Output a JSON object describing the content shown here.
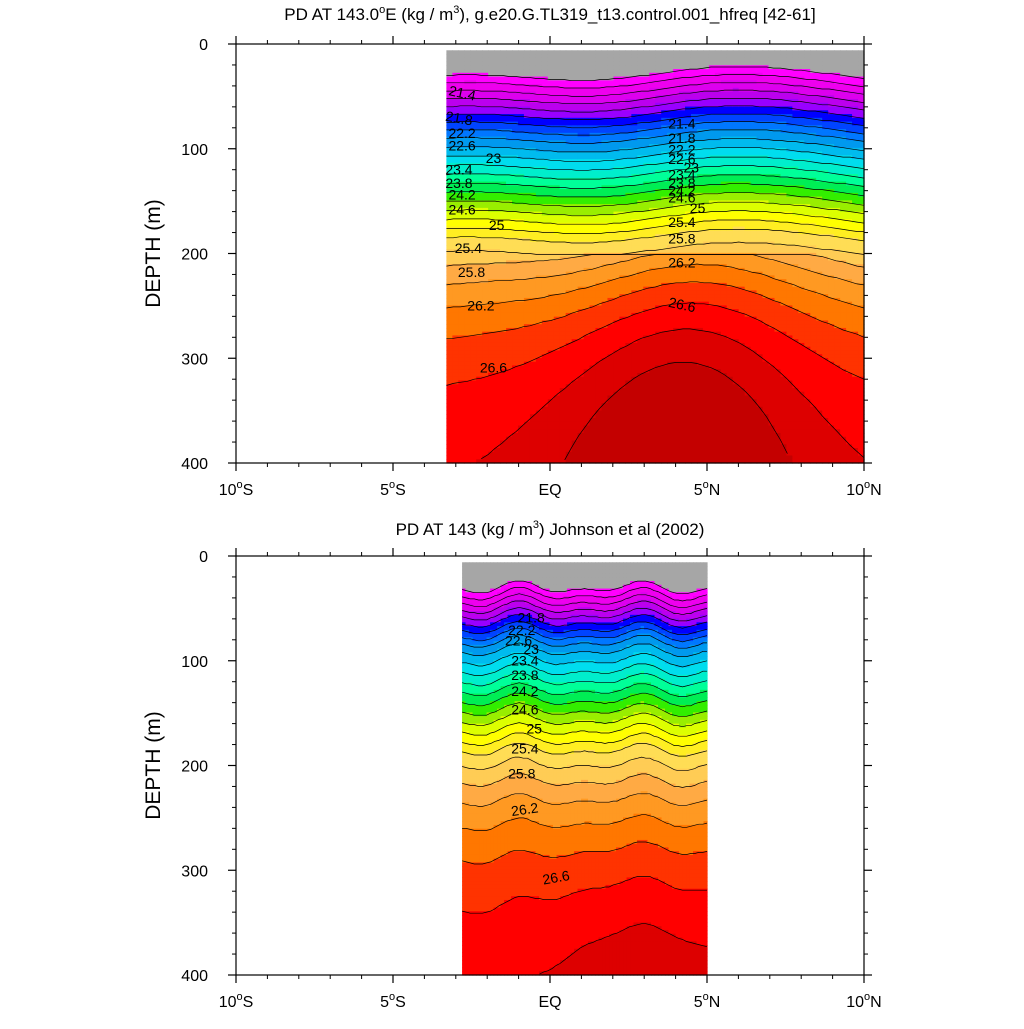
{
  "chart_data": [
    {
      "type": "contour",
      "title_prefix": "PD AT 143.0",
      "title_degree_mark": "o",
      "title_middle": "E (kg / m",
      "title_superscript": "3",
      "title_suffix": "), g.e20.G.TL319_t13.control.001_hfreq [42-61]",
      "ylabel": "DEPTH (m)",
      "xlim": [
        -10,
        10
      ],
      "ylim": [
        0,
        400
      ],
      "y_reversed": true,
      "data_xrange": [
        -3.3,
        10
      ],
      "x_ticks": [
        {
          "value": -10,
          "num": "10",
          "deg": "o",
          "dir": "S"
        },
        {
          "value": -5,
          "num": "5",
          "deg": "o",
          "dir": "S"
        },
        {
          "value": 0,
          "num": "EQ",
          "deg": "",
          "dir": ""
        },
        {
          "value": 5,
          "num": "5",
          "deg": "o",
          "dir": "N"
        },
        {
          "value": 10,
          "num": "10",
          "deg": "o",
          "dir": "N"
        }
      ],
      "y_ticks": [
        {
          "value": 0,
          "label": "0"
        },
        {
          "value": 100,
          "label": "100"
        },
        {
          "value": 200,
          "label": "200"
        },
        {
          "value": 300,
          "label": "300"
        },
        {
          "value": 400,
          "label": "400"
        }
      ],
      "levels": [
        21.4,
        21.6,
        21.8,
        22.0,
        22.2,
        22.4,
        22.6,
        22.8,
        23.0,
        23.2,
        23.4,
        23.6,
        23.8,
        24.0,
        24.2,
        24.4,
        24.6,
        24.8,
        25.0,
        25.2,
        25.4,
        25.6,
        25.8,
        26.0,
        26.2,
        26.4,
        26.6,
        26.8
      ],
      "fill_colors": [
        "#a6a6a6",
        "#ff00ff",
        "#ee00ee",
        "#dd00ee",
        "#bb00ee",
        "#9900ff",
        "#0000ff",
        "#0044ff",
        "#0077ff",
        "#0099ee",
        "#00bbee",
        "#00ddee",
        "#00eecc",
        "#00ff99",
        "#00ee55",
        "#33ee00",
        "#99ee00",
        "#ddff00",
        "#ffff00",
        "#ffee22",
        "#ffdd55",
        "#ffcc55",
        "#ffaa44",
        "#ff9922",
        "#ff7700",
        "#ff3300",
        "#ff0000",
        "#dd0000",
        "#c40000"
      ],
      "labels": [
        {
          "text": "21.4",
          "x": -2.8,
          "y": 48,
          "angle": 12
        },
        {
          "text": "21.8",
          "x": -2.9,
          "y": 72,
          "angle": 10
        },
        {
          "text": "22.2",
          "x": -2.8,
          "y": 86,
          "angle": 0
        },
        {
          "text": "22.6",
          "x": -2.8,
          "y": 98,
          "angle": 0
        },
        {
          "text": "23",
          "x": -1.8,
          "y": 110,
          "angle": 0
        },
        {
          "text": "23.4",
          "x": -2.9,
          "y": 121,
          "angle": 0
        },
        {
          "text": "23.8",
          "x": -2.9,
          "y": 134,
          "angle": 0
        },
        {
          "text": "24.2",
          "x": -2.8,
          "y": 145,
          "angle": 0
        },
        {
          "text": "24.6",
          "x": -2.8,
          "y": 159,
          "angle": 0
        },
        {
          "text": "25",
          "x": -1.7,
          "y": 174,
          "angle": 0
        },
        {
          "text": "25.4",
          "x": -2.6,
          "y": 196,
          "angle": 0
        },
        {
          "text": "25.8",
          "x": -2.5,
          "y": 219,
          "angle": 0
        },
        {
          "text": "26.2",
          "x": -2.2,
          "y": 251,
          "angle": 0
        },
        {
          "text": "26.6",
          "x": -1.8,
          "y": 310,
          "angle": 0
        },
        {
          "text": "21.4",
          "x": 4.2,
          "y": 77,
          "angle": 0
        },
        {
          "text": "21.8",
          "x": 4.2,
          "y": 91,
          "angle": 0
        },
        {
          "text": "22.2",
          "x": 4.2,
          "y": 102,
          "angle": 0
        },
        {
          "text": "22.6",
          "x": 4.2,
          "y": 111,
          "angle": 0
        },
        {
          "text": "23",
          "x": 4.5,
          "y": 119,
          "angle": 0
        },
        {
          "text": "23.4",
          "x": 4.2,
          "y": 126,
          "angle": 0
        },
        {
          "text": "23.8",
          "x": 4.2,
          "y": 134,
          "angle": 0
        },
        {
          "text": "24.2",
          "x": 4.2,
          "y": 141,
          "angle": 0
        },
        {
          "text": "24.6",
          "x": 4.2,
          "y": 148,
          "angle": 0
        },
        {
          "text": "25",
          "x": 4.7,
          "y": 158,
          "angle": 0
        },
        {
          "text": "25.4",
          "x": 4.2,
          "y": 171,
          "angle": 0
        },
        {
          "text": "25.8",
          "x": 4.2,
          "y": 187,
          "angle": 0
        },
        {
          "text": "26.2",
          "x": 4.2,
          "y": 210,
          "angle": 0
        },
        {
          "text": "26.6",
          "x": 4.2,
          "y": 250,
          "angle": 12
        }
      ]
    },
    {
      "type": "contour",
      "title_prefix": "PD AT 143 (kg / m",
      "title_degree_mark": "",
      "title_middle": "",
      "title_superscript": "3",
      "title_suffix": ") Johnson et al (2002)",
      "ylabel": "DEPTH (m)",
      "xlim": [
        -10,
        10
      ],
      "ylim": [
        0,
        400
      ],
      "y_reversed": true,
      "data_xrange": [
        -2.8,
        5
      ],
      "x_ticks": [
        {
          "value": -10,
          "num": "10",
          "deg": "o",
          "dir": "S"
        },
        {
          "value": -5,
          "num": "5",
          "deg": "o",
          "dir": "S"
        },
        {
          "value": 0,
          "num": "EQ",
          "deg": "",
          "dir": ""
        },
        {
          "value": 5,
          "num": "5",
          "deg": "o",
          "dir": "N"
        },
        {
          "value": 10,
          "num": "10",
          "deg": "o",
          "dir": "N"
        }
      ],
      "y_ticks": [
        {
          "value": 0,
          "label": "0"
        },
        {
          "value": 100,
          "label": "100"
        },
        {
          "value": 200,
          "label": "200"
        },
        {
          "value": 300,
          "label": "300"
        },
        {
          "value": 400,
          "label": "400"
        }
      ],
      "levels": [
        21.4,
        21.6,
        21.8,
        22.0,
        22.2,
        22.4,
        22.6,
        22.8,
        23.0,
        23.2,
        23.4,
        23.6,
        23.8,
        24.0,
        24.2,
        24.4,
        24.6,
        24.8,
        25.0,
        25.2,
        25.4,
        25.6,
        25.8,
        26.0,
        26.2,
        26.4,
        26.6,
        26.8
      ],
      "fill_colors": [
        "#a6a6a6",
        "#ff00ff",
        "#ee00ee",
        "#dd00ee",
        "#bb00ee",
        "#9900ff",
        "#0000ff",
        "#0044ff",
        "#0077ff",
        "#0099ee",
        "#00bbee",
        "#00ddee",
        "#00eecc",
        "#00ff99",
        "#00ee55",
        "#33ee00",
        "#99ee00",
        "#ddff00",
        "#ffff00",
        "#ffee22",
        "#ffdd55",
        "#ffcc55",
        "#ffaa44",
        "#ff9922",
        "#ff7700",
        "#ff3300",
        "#ff0000",
        "#dd0000",
        "#c40000"
      ],
      "labels": [
        {
          "text": "21.8",
          "x": -0.6,
          "y": 60,
          "angle": 0
        },
        {
          "text": "22.2",
          "x": -0.9,
          "y": 72,
          "angle": 0
        },
        {
          "text": "22.6",
          "x": -1.0,
          "y": 82,
          "angle": 0
        },
        {
          "text": "23",
          "x": -0.6,
          "y": 90,
          "angle": 0
        },
        {
          "text": "23.4",
          "x": -0.8,
          "y": 101,
          "angle": 0
        },
        {
          "text": "23.8",
          "x": -0.8,
          "y": 115,
          "angle": 0
        },
        {
          "text": "24.2",
          "x": -0.8,
          "y": 130,
          "angle": 0
        },
        {
          "text": "24.6",
          "x": -0.8,
          "y": 148,
          "angle": 0
        },
        {
          "text": "25",
          "x": -0.5,
          "y": 166,
          "angle": 0
        },
        {
          "text": "25.4",
          "x": -0.8,
          "y": 185,
          "angle": 0
        },
        {
          "text": "25.8",
          "x": -0.9,
          "y": 209,
          "angle": 0
        },
        {
          "text": "26.2",
          "x": -0.8,
          "y": 243,
          "angle": -8
        },
        {
          "text": "26.6",
          "x": 0.2,
          "y": 308,
          "angle": -10
        }
      ]
    }
  ]
}
